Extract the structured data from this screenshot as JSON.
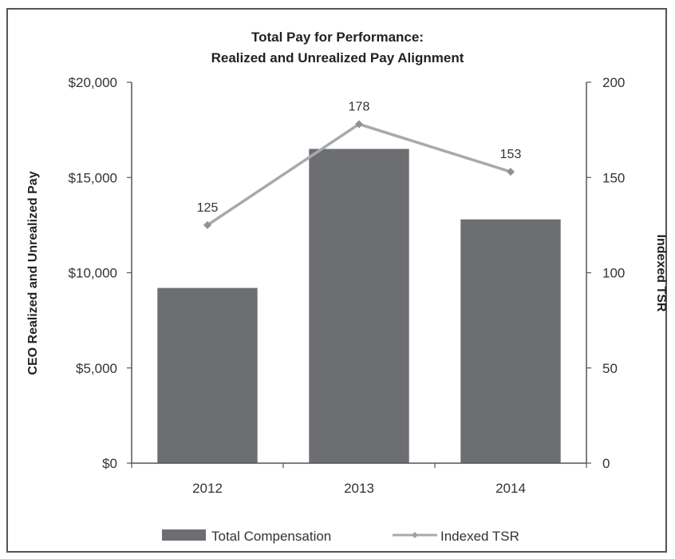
{
  "chart_data": {
    "type": "bar+line",
    "title": "Total Pay for Performance:",
    "subtitle": "Realized and Unrealized Pay Alignment",
    "categories": [
      "2012",
      "2013",
      "2014"
    ],
    "ylabel_left": "CEO Realized and Unrealized Pay",
    "ylabel_right": "Indexed TSR",
    "ylim_left": [
      0,
      20000
    ],
    "ylim_right": [
      0,
      200
    ],
    "left_ticks": [
      "$0",
      "$5,000",
      "$10,000",
      "$15,000",
      "$20,000"
    ],
    "left_tick_values": [
      0,
      5000,
      10000,
      15000,
      20000
    ],
    "right_ticks": [
      "0",
      "50",
      "100",
      "150",
      "200"
    ],
    "right_tick_values": [
      0,
      50,
      100,
      150,
      200
    ],
    "series": [
      {
        "name": "Total Compensation",
        "type": "bar",
        "axis": "left",
        "values": [
          9200,
          16500,
          12800
        ],
        "color": "#6d6e71"
      },
      {
        "name": "Indexed TSR",
        "type": "line",
        "axis": "right",
        "values": [
          125,
          178,
          153
        ],
        "labels": [
          "125",
          "178",
          "153"
        ],
        "color": "#a7a9ac"
      }
    ],
    "legend_position": "bottom",
    "grid": false
  }
}
